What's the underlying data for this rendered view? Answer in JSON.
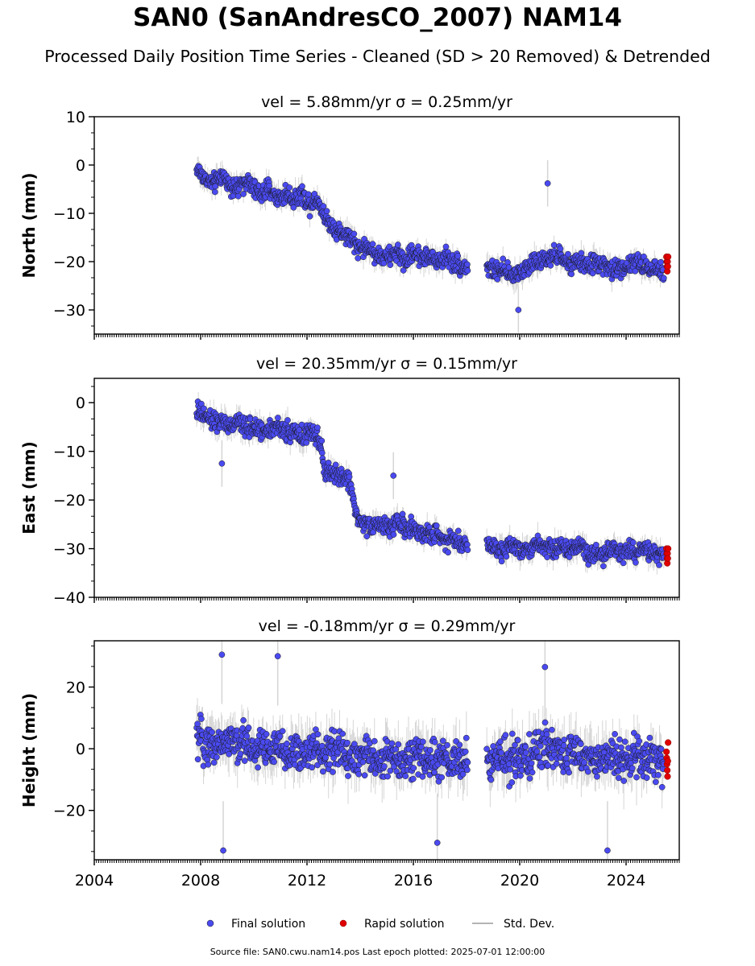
{
  "figure": {
    "title": "SAN0 (SanAndresCO_2007) NAM14",
    "subtitle": "Processed Daily Position Time Series - Cleaned (SD > 20 Removed) & Detrended",
    "footer": "Source file: SAN0.cwu.nam14.pos  Last epoch plotted: 2025-07-01 12:00:00",
    "colors": {
      "final": "#4a4af0",
      "rapid": "#e00000",
      "stddev": "#b4b4b4",
      "marker_edge": "#1a1a1a"
    }
  },
  "chart_data": [
    {
      "type": "scatter",
      "panel": "north",
      "title": "vel = 5.88mm/yr   σ = 0.25mm/yr",
      "ylabel": "North (mm)",
      "xlabel": "",
      "xlim": [
        2004.0,
        2026.0
      ],
      "ylim": [
        -35,
        10
      ],
      "yticks": [
        10,
        0,
        -10,
        -20,
        -30
      ],
      "ytick_labels": [
        "10",
        "0",
        "−10",
        "−20",
        "−30"
      ],
      "grid": false,
      "series": [
        {
          "name": "Final solution",
          "role": "final",
          "x": [
            2007.9,
            2008.2,
            2008.5,
            2008.8,
            2009.1,
            2009.4,
            2009.7,
            2010.0,
            2010.3,
            2010.6,
            2010.9,
            2011.2,
            2011.5,
            2011.8,
            2012.1,
            2012.4,
            2012.7,
            2013.0,
            2013.3,
            2013.6,
            2013.9,
            2014.2,
            2014.5,
            2014.8,
            2015.1,
            2015.4,
            2015.7,
            2016.0,
            2016.3,
            2016.6,
            2016.9,
            2017.2,
            2017.5,
            2017.8,
            2018.8,
            2019.1,
            2019.4,
            2019.7,
            2020.0,
            2020.3,
            2020.6,
            2020.9,
            2021.2,
            2021.6,
            2021.9,
            2022.3,
            2022.6,
            2022.9,
            2023.2,
            2023.5,
            2023.8,
            2024.1,
            2024.4,
            2024.7,
            2025.0,
            2025.3
          ],
          "y": [
            -1,
            -3,
            -4,
            -2,
            -4,
            -5,
            -3,
            -5,
            -6,
            -5,
            -7,
            -6,
            -7,
            -6,
            -8,
            -7,
            -11,
            -13,
            -14,
            -15,
            -17,
            -17,
            -18,
            -19,
            -19,
            -18,
            -20,
            -18,
            -19,
            -19,
            -20,
            -19,
            -20,
            -21,
            -21,
            -22,
            -22,
            -23,
            -22,
            -21,
            -20,
            -20,
            -19,
            -19,
            -21,
            -20,
            -21,
            -20,
            -21,
            -22,
            -21,
            -21,
            -20,
            -21,
            -21,
            -22
          ]
        },
        {
          "name": "Rapid solution",
          "role": "rapid",
          "x": [
            2025.52,
            2025.53,
            2025.54,
            2025.55,
            2025.56,
            2025.57,
            2025.58
          ],
          "y": [
            -19,
            -20,
            -21,
            -22,
            -20,
            -21,
            -19
          ]
        }
      ],
      "outliers": {
        "x": [
          2021.05,
          2019.95
        ],
        "y": [
          -3.8,
          -30
        ]
      },
      "sd_band": 3
    },
    {
      "type": "scatter",
      "panel": "east",
      "title": "vel = 20.35mm/yr   σ = 0.15mm/yr",
      "ylabel": "East (mm)",
      "xlabel": "",
      "xlim": [
        2004.0,
        2026.0
      ],
      "ylim": [
        -40,
        5
      ],
      "yticks": [
        0,
        -10,
        -20,
        -30,
        -40
      ],
      "ytick_labels": [
        "0",
        "−10",
        "−20",
        "−30",
        "−40"
      ],
      "grid": false,
      "series": [
        {
          "name": "Final solution",
          "role": "final",
          "x": [
            2007.9,
            2008.2,
            2008.5,
            2008.8,
            2009.1,
            2009.4,
            2009.7,
            2010.0,
            2010.3,
            2010.6,
            2010.9,
            2011.2,
            2011.5,
            2011.8,
            2012.1,
            2012.4,
            2012.7,
            2013.0,
            2013.3,
            2013.6,
            2013.9,
            2014.2,
            2014.5,
            2014.8,
            2015.1,
            2015.4,
            2015.7,
            2016.0,
            2016.3,
            2016.6,
            2016.9,
            2017.2,
            2017.5,
            2017.8,
            2018.8,
            2019.1,
            2019.4,
            2019.7,
            2020.0,
            2020.3,
            2020.6,
            2020.9,
            2021.2,
            2021.6,
            2021.9,
            2022.3,
            2022.6,
            2022.9,
            2023.2,
            2023.5,
            2023.8,
            2024.1,
            2024.4,
            2024.7,
            2025.0,
            2025.3
          ],
          "y": [
            -2,
            -3,
            -4,
            -4,
            -5,
            -4,
            -5,
            -5,
            -6,
            -5,
            -5,
            -6,
            -6,
            -7,
            -6,
            -7,
            -14,
            -15,
            -15,
            -16,
            -24,
            -25,
            -25,
            -25,
            -26,
            -24,
            -26,
            -26,
            -27,
            -27,
            -27,
            -28,
            -28,
            -29,
            -29,
            -30,
            -30,
            -29,
            -30,
            -30,
            -29,
            -29,
            -30,
            -30,
            -30,
            -29,
            -31,
            -31,
            -31,
            -30,
            -31,
            -30,
            -31,
            -30,
            -31,
            -31
          ]
        },
        {
          "name": "Rapid solution",
          "role": "rapid",
          "x": [
            2025.52,
            2025.53,
            2025.54,
            2025.55,
            2025.56,
            2025.57,
            2025.58
          ],
          "y": [
            -30,
            -31,
            -32,
            -33,
            -31,
            -32,
            -30
          ]
        }
      ],
      "outliers": {
        "x": [
          2015.25,
          2008.8
        ],
        "y": [
          -15,
          -12.5
        ]
      },
      "sd_band": 3
    },
    {
      "type": "scatter",
      "panel": "height",
      "title": "vel = -0.18mm/yr   σ = 0.29mm/yr",
      "ylabel": "Height (mm)",
      "xlabel": "",
      "xlim": [
        2004.0,
        2026.0
      ],
      "ylim": [
        -36,
        35
      ],
      "yticks": [
        20,
        0,
        -20
      ],
      "ytick_labels": [
        "20",
        "0",
        "−20"
      ],
      "xticks": [
        2004,
        2008,
        2012,
        2016,
        2020,
        2024
      ],
      "xtick_labels": [
        "2004",
        "2008",
        "2012",
        "2016",
        "2020",
        "2024"
      ],
      "grid": false,
      "series": [
        {
          "name": "Final solution",
          "role": "final",
          "x": [
            2007.9,
            2008.2,
            2008.5,
            2008.8,
            2009.1,
            2009.4,
            2009.7,
            2010.0,
            2010.3,
            2010.6,
            2010.9,
            2011.2,
            2011.5,
            2011.8,
            2012.1,
            2012.4,
            2012.7,
            2013.0,
            2013.3,
            2013.6,
            2013.9,
            2014.2,
            2014.5,
            2014.8,
            2015.1,
            2015.4,
            2015.7,
            2016.0,
            2016.3,
            2016.6,
            2016.9,
            2017.2,
            2017.5,
            2017.8,
            2018.8,
            2019.1,
            2019.4,
            2019.7,
            2020.0,
            2020.3,
            2020.6,
            2020.9,
            2021.2,
            2021.6,
            2021.9,
            2022.3,
            2022.6,
            2022.9,
            2023.2,
            2023.5,
            2023.8,
            2024.1,
            2024.4,
            2024.7,
            2025.0,
            2025.3
          ],
          "y": [
            3,
            2,
            1,
            2,
            3,
            1,
            2,
            0,
            1,
            -1,
            0,
            -2,
            -1,
            -2,
            0,
            -1,
            -2,
            0,
            -1,
            -2,
            -3,
            -2,
            -3,
            -4,
            -3,
            -4,
            -3,
            -2,
            -3,
            -4,
            -3,
            -5,
            -4,
            -4,
            -5,
            -4,
            -3,
            -2,
            -3,
            -4,
            -1,
            0,
            1,
            -2,
            -1,
            -2,
            -3,
            -4,
            -3,
            -2,
            -4,
            -3,
            -2,
            -4,
            -3,
            -4
          ]
        },
        {
          "name": "Rapid solution",
          "role": "rapid",
          "x": [
            2025.52,
            2025.53,
            2025.54,
            2025.55,
            2025.56,
            2025.57,
            2025.58
          ],
          "y": [
            -1,
            -3,
            -5,
            -7,
            -9,
            -4,
            2
          ]
        }
      ],
      "outliers": {
        "x": [
          2008.8,
          2010.9,
          2008.85,
          2020.95,
          2023.3,
          2016.9
        ],
        "y": [
          30.5,
          30,
          -33,
          26.5,
          -33,
          -30.5
        ]
      },
      "sd_band": 10
    }
  ],
  "legend": {
    "placement": "bottom-center",
    "items": [
      {
        "label": "Final solution",
        "marker": "dot-blue"
      },
      {
        "label": "Rapid solution",
        "marker": "dot-red"
      },
      {
        "label": "Std. Dev.",
        "marker": "line-gray"
      }
    ]
  }
}
